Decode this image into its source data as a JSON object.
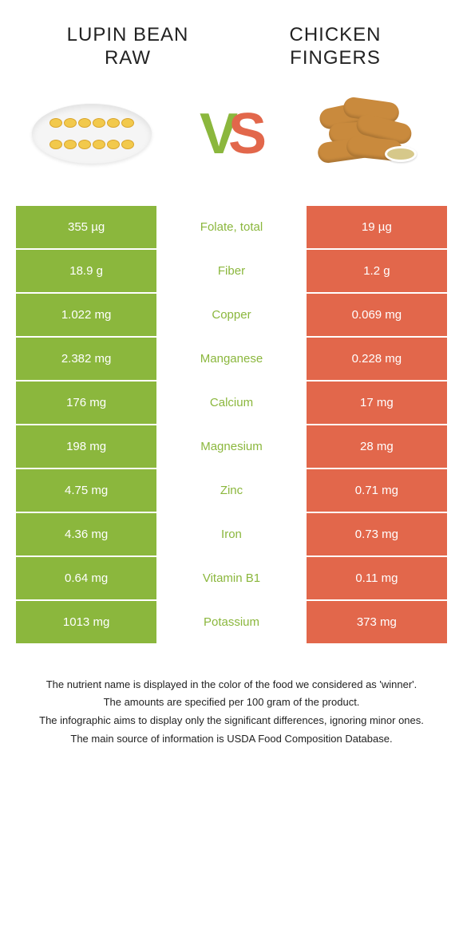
{
  "colors": {
    "green": "#8bb73d",
    "orange": "#e2674b",
    "vs_v": "#8bb73d",
    "vs_s": "#e2674b"
  },
  "food_left": {
    "title_line1": "LUPIN BEAN",
    "title_line2": "RAW"
  },
  "food_right": {
    "title_line1": "CHICKEN",
    "title_line2": "FINGERS"
  },
  "vs": {
    "v": "V",
    "s": "S"
  },
  "rows": [
    {
      "left": "355 µg",
      "mid": "Folate, total",
      "right": "19 µg",
      "winner": "green"
    },
    {
      "left": "18.9 g",
      "mid": "Fiber",
      "right": "1.2 g",
      "winner": "green"
    },
    {
      "left": "1.022 mg",
      "mid": "Copper",
      "right": "0.069 mg",
      "winner": "green"
    },
    {
      "left": "2.382 mg",
      "mid": "Manganese",
      "right": "0.228 mg",
      "winner": "green"
    },
    {
      "left": "176 mg",
      "mid": "Calcium",
      "right": "17 mg",
      "winner": "green"
    },
    {
      "left": "198 mg",
      "mid": "Magnesium",
      "right": "28 mg",
      "winner": "green"
    },
    {
      "left": "4.75 mg",
      "mid": "Zinc",
      "right": "0.71 mg",
      "winner": "green"
    },
    {
      "left": "4.36 mg",
      "mid": "Iron",
      "right": "0.73 mg",
      "winner": "green"
    },
    {
      "left": "0.64 mg",
      "mid": "Vitamin B1",
      "right": "0.11 mg",
      "winner": "green"
    },
    {
      "left": "1013 mg",
      "mid": "Potassium",
      "right": "373 mg",
      "winner": "green"
    }
  ],
  "footnote": {
    "l1": "The nutrient name is displayed in the color of the food we considered as 'winner'.",
    "l2": "The amounts are specified per 100 gram of the product.",
    "l3": "The infographic aims to display only the significant differences, ignoring minor ones.",
    "l4": "The main source of information is USDA Food Composition Database."
  }
}
